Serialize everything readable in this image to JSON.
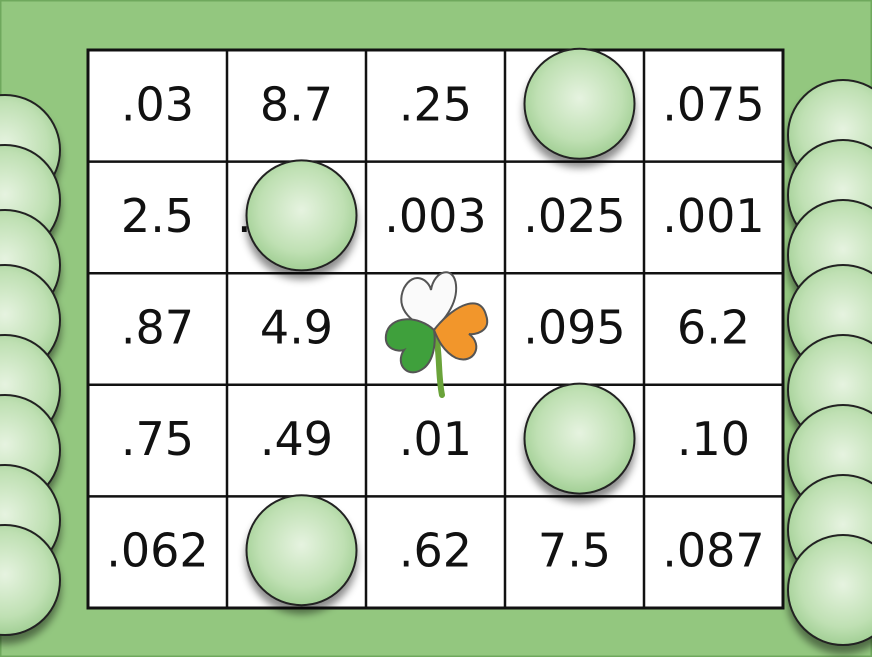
{
  "board": {
    "rows": [
      [
        ".03",
        "8.7",
        ".25",
        null,
        ".075"
      ],
      [
        "2.5",
        ".",
        ".003",
        ".025",
        ".001"
      ],
      [
        ".87",
        "4.9",
        null,
        ".095",
        "6.2"
      ],
      [
        ".75",
        ".49",
        ".01",
        null,
        ".10"
      ],
      [
        ".062",
        null,
        ".62",
        "7.5",
        ".087"
      ]
    ],
    "covered": [
      [
        0,
        3
      ],
      [
        1,
        1
      ],
      [
        3,
        3
      ],
      [
        4,
        1
      ]
    ]
  }
}
